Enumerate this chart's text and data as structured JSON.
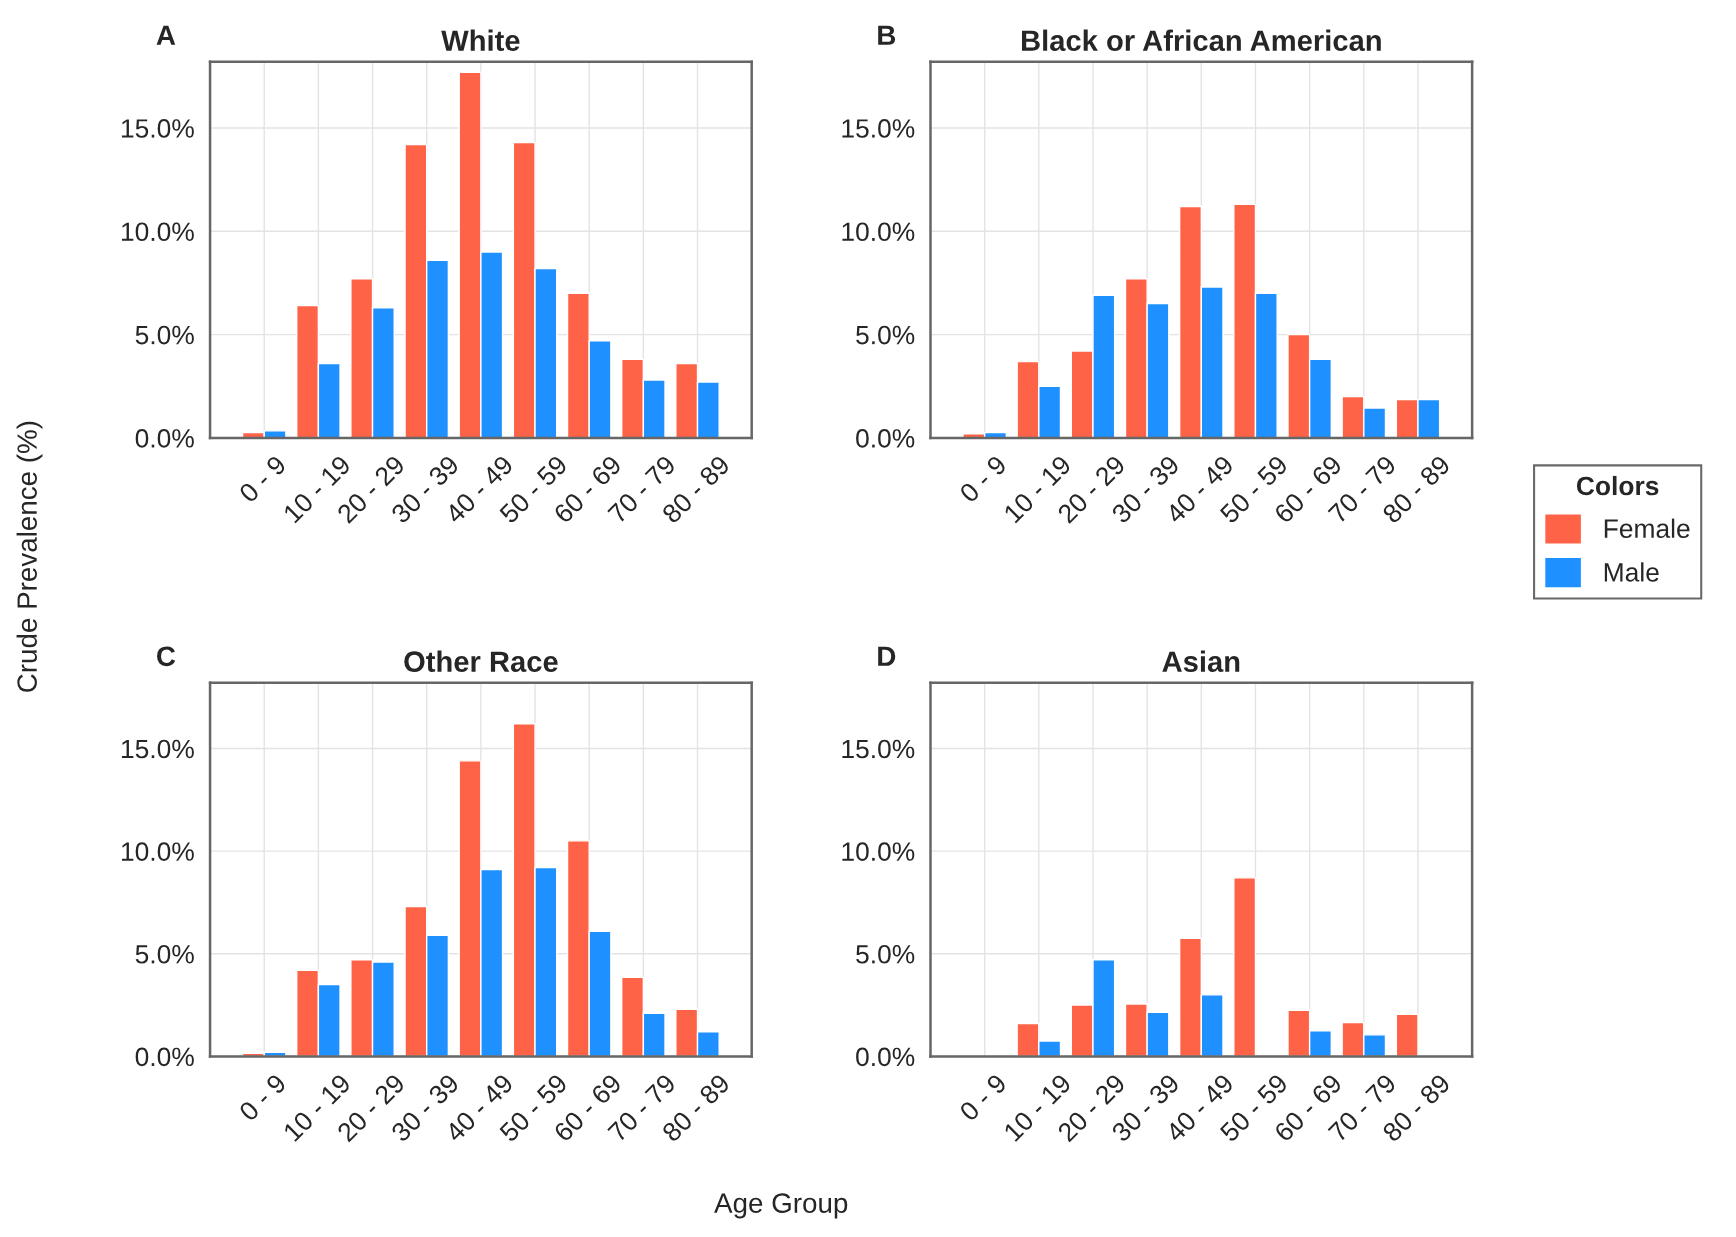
{
  "chart_data": [
    {
      "type": "bar",
      "title": "White",
      "ylabel": "Crude Prevalence (%)",
      "annotations": [
        "A"
      ],
      "categories": [
        "0 - 9",
        "10 - 19",
        "20 - 29",
        "30 - 39",
        "40 - 49",
        "50 - 59",
        "60 - 69",
        "70 - 79",
        "80 - 89"
      ],
      "series": [
        {
          "color": "#ff6347",
          "values": [
            0.26,
            6.4,
            7.7,
            14.2,
            17.7,
            14.3,
            7.0,
            3.8,
            3.6
          ]
        },
        {
          "color": "#1e90ff",
          "values": [
            0.34,
            3.6,
            6.3,
            8.6,
            9.0,
            8.2,
            4.7,
            2.8,
            2.7
          ]
        }
      ],
      "ylim": [
        0,
        18.2
      ],
      "yticks": [
        {
          "value": 0,
          "label": "0.0%"
        },
        {
          "value": 5,
          "label": "5.0%"
        },
        {
          "value": 10,
          "label": "10.0%"
        },
        {
          "value": 15,
          "label": "15.0%"
        }
      ],
      "grid": true,
      "legend": false
    },
    {
      "type": "bar",
      "title": "Black or African American",
      "annotations": [
        "B"
      ],
      "legend_title": "Colors",
      "categories": [
        "0 - 9",
        "10 - 19",
        "20 - 29",
        "30 - 39",
        "40 - 49",
        "50 - 59",
        "60 - 69",
        "70 - 79",
        "80 - 89"
      ],
      "series": [
        {
          "name": "Female",
          "color": "#ff6347",
          "values": [
            0.2,
            3.7,
            4.2,
            7.7,
            11.2,
            11.3,
            5.0,
            2.0,
            1.85
          ]
        },
        {
          "name": "Male",
          "color": "#1e90ff",
          "values": [
            0.26,
            2.5,
            6.9,
            6.5,
            7.3,
            7.0,
            3.8,
            1.45,
            1.85
          ]
        }
      ],
      "ylim": [
        0,
        18.2
      ],
      "yticks": [
        {
          "value": 0,
          "label": "0.0%"
        },
        {
          "value": 5,
          "label": "5.0%"
        },
        {
          "value": 10,
          "label": "10.0%"
        },
        {
          "value": 15,
          "label": "15.0%"
        }
      ],
      "grid": true,
      "legend": "right"
    },
    {
      "type": "bar",
      "title": "Other Race",
      "annotations": [
        "C"
      ],
      "categories": [
        "0 - 9",
        "10 - 19",
        "20 - 29",
        "30 - 39",
        "40 - 49",
        "50 - 59",
        "60 - 69",
        "70 - 79",
        "80 - 89"
      ],
      "series": [
        {
          "color": "#ff6347",
          "values": [
            0.15,
            4.2,
            4.7,
            7.3,
            14.4,
            16.2,
            10.5,
            3.85,
            2.3
          ]
        },
        {
          "color": "#1e90ff",
          "values": [
            0.2,
            3.5,
            4.6,
            5.9,
            9.1,
            9.2,
            6.1,
            2.1,
            1.2
          ]
        }
      ],
      "ylim": [
        0,
        18.2
      ],
      "yticks": [
        {
          "value": 0,
          "label": "0.0%"
        },
        {
          "value": 5,
          "label": "5.0%"
        },
        {
          "value": 10,
          "label": "10.0%"
        },
        {
          "value": 15,
          "label": "15.0%"
        }
      ],
      "grid": true,
      "legend": false
    },
    {
      "type": "bar",
      "title": "Asian",
      "xlabel": "Age Group",
      "annotations": [
        "D"
      ],
      "categories": [
        "0 - 9",
        "10 - 19",
        "20 - 29",
        "30 - 39",
        "40 - 49",
        "50 - 59",
        "60 - 69",
        "70 - 79",
        "80 - 89"
      ],
      "series": [
        {
          "color": "#ff6347",
          "values": [
            null,
            1.6,
            2.5,
            2.55,
            5.75,
            8.7,
            2.25,
            1.65,
            2.05
          ]
        },
        {
          "color": "#1e90ff",
          "values": [
            null,
            0.75,
            4.7,
            2.15,
            3.0,
            null,
            1.25,
            1.05,
            null
          ]
        }
      ],
      "ylim": [
        0,
        18.2
      ],
      "yticks": [
        {
          "value": 0,
          "label": "0.0%"
        },
        {
          "value": 5,
          "label": "5.0%"
        },
        {
          "value": 10,
          "label": "10.0%"
        },
        {
          "value": 15,
          "label": "15.0%"
        }
      ],
      "grid": true,
      "legend": false
    }
  ]
}
